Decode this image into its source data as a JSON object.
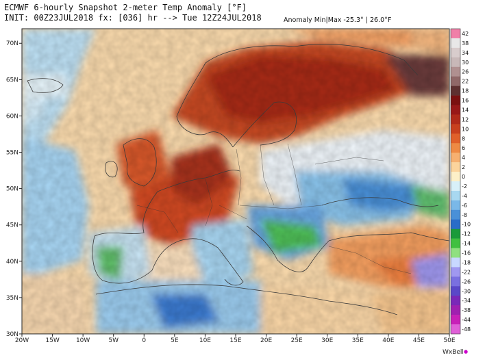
{
  "header": {
    "title": "ECMWF 6-hourly Snapshot 2-meter Temp Anomaly [°F]",
    "init": "INIT: 00Z23JUL2018 fx: [036] hr --> Tue 12Z24JUL2018",
    "minmax": "Anomaly Min|Max -25.3° | 26.0°F"
  },
  "map": {
    "extent": {
      "lon_min": -20,
      "lon_max": 50,
      "lat_min": 30,
      "lat_max": 72
    },
    "lat_labels": [
      "70N",
      "65N",
      "60N",
      "55N",
      "50N",
      "45N",
      "40N",
      "35N",
      "30N"
    ],
    "lat_values": [
      70,
      65,
      60,
      55,
      50,
      45,
      40,
      35,
      30
    ],
    "lon_labels": [
      "20W",
      "15W",
      "10W",
      "5W",
      "0",
      "5E",
      "10E",
      "15E",
      "20E",
      "25E",
      "30E",
      "35E",
      "40E",
      "45E",
      "50E"
    ],
    "lon_values": [
      -20,
      -15,
      -10,
      -5,
      0,
      5,
      10,
      15,
      20,
      25,
      30,
      35,
      40,
      45,
      50
    ]
  },
  "colorbar": {
    "labels": [
      "42",
      "38",
      "34",
      "30",
      "26",
      "22",
      "18",
      "16",
      "14",
      "12",
      "10",
      "8",
      "6",
      "4",
      "2",
      "0",
      "-2",
      "-4",
      "-6",
      "-8",
      "-10",
      "-12",
      "-14",
      "-16",
      "-18",
      "-22",
      "-26",
      "-30",
      "-34",
      "-38",
      "-44",
      "-48"
    ],
    "colors": [
      "#f07fa8",
      "#e8e8e8",
      "#d8cccc",
      "#c8b8b8",
      "#b09090",
      "#906868",
      "#5e3030",
      "#7a1010",
      "#981818",
      "#b02a1a",
      "#c8401e",
      "#e0602a",
      "#ee8a44",
      "#f6b070",
      "#fcd49c",
      "#fdf0c8",
      "#d8f0f8",
      "#a8d8f0",
      "#7ab8e8",
      "#4a90d8",
      "#2a6cc8",
      "#1a9a3a",
      "#40c040",
      "#90e080",
      "#c8d8ff",
      "#a098f0",
      "#7a70e0",
      "#5a48c8",
      "#7a28b8",
      "#a020b0",
      "#c820b8",
      "#e060d8"
    ]
  },
  "brand": {
    "name": "WxBell"
  }
}
